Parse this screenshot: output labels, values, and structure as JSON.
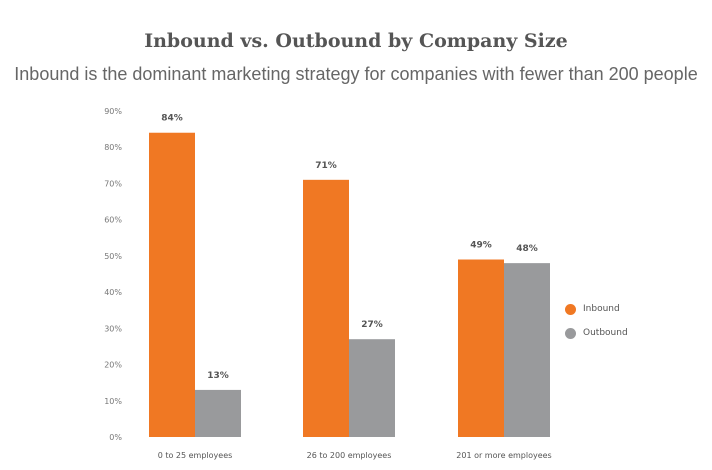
{
  "title": "Inbound vs. Outbound by Company Size",
  "subtitle": "Inbound is the dominant marketing strategy for companies with fewer than 200 people",
  "colors": {
    "inbound": "#f07823",
    "outbound": "#999a9c",
    "tick_text": "#777777",
    "label_text": "#555555"
  },
  "chart_data": {
    "type": "bar",
    "categories": [
      "0 to 25 employees",
      "26 to 200 employees",
      "201 or more employees"
    ],
    "series": [
      {
        "name": "Inbound",
        "values": [
          84,
          71,
          49
        ],
        "labels": [
          "84%",
          "71%",
          "49%"
        ]
      },
      {
        "name": "Outbound",
        "values": [
          13,
          27,
          48
        ],
        "labels": [
          "13%",
          "27%",
          "48%"
        ]
      }
    ],
    "ylim": [
      0,
      90
    ],
    "yticks": [
      "0%",
      "10%",
      "20%",
      "30%",
      "40%",
      "50%",
      "60%",
      "70%",
      "80%",
      "90%"
    ],
    "grid": false,
    "legend_position": "right"
  }
}
